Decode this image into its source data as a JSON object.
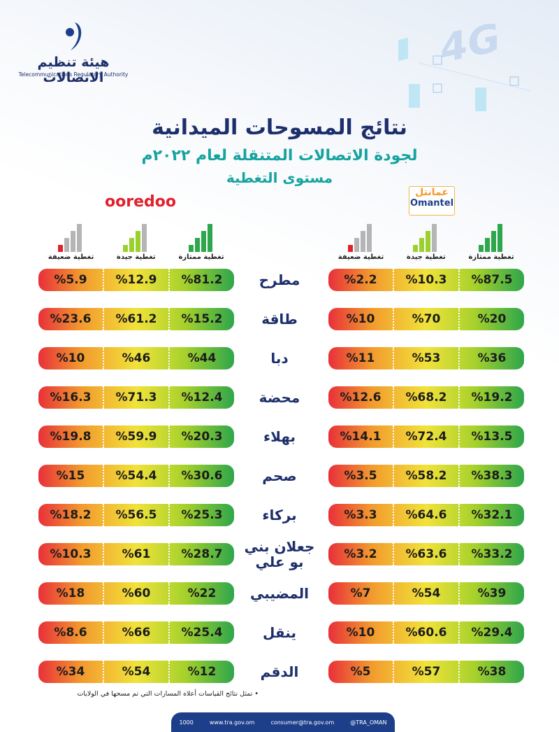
{
  "header": {
    "org_ar": "هيئة تنظيم الاتصالات",
    "org_en": "Telecommunications Regulatory Authority",
    "badge": "4G"
  },
  "title": {
    "line1": "نتائج المسوحات الميدانية",
    "line2": "لجودة الاتصالات المتنقلة لعام ٢٠٢٢م",
    "line3": "مستوى التغطية"
  },
  "ooredoo": {
    "logo": "ooredoo"
  },
  "omantel": {
    "logo_ar": "عمانتل",
    "logo_en": "Omantel"
  },
  "columns": [
    "تغطية ممتازة",
    "تغطية جيدة",
    "تغطية ضعيفة"
  ],
  "rows": [
    {
      "wilayat": "مطرح",
      "omantel": [
        "%87.5",
        "%10.3",
        "%2.2"
      ],
      "ooredoo": [
        "%81.2",
        "%12.9",
        "%5.9"
      ]
    },
    {
      "wilayat": "طاقة",
      "omantel": [
        "%20",
        "%70",
        "%10"
      ],
      "ooredoo": [
        "%15.2",
        "%61.2",
        "%23.6"
      ]
    },
    {
      "wilayat": "دبا",
      "omantel": [
        "%36",
        "%53",
        "%11"
      ],
      "ooredoo": [
        "%44",
        "%46",
        "%10"
      ]
    },
    {
      "wilayat": "محضة",
      "omantel": [
        "%19.2",
        "%68.2",
        "%12.6"
      ],
      "ooredoo": [
        "%12.4",
        "%71.3",
        "%16.3"
      ]
    },
    {
      "wilayat": "بهلاء",
      "omantel": [
        "%13.5",
        "%72.4",
        "%14.1"
      ],
      "ooredoo": [
        "%20.3",
        "%59.9",
        "%19.8"
      ]
    },
    {
      "wilayat": "صحم",
      "omantel": [
        "%38.3",
        "%58.2",
        "%3.5"
      ],
      "ooredoo": [
        "%30.6",
        "%54.4",
        "%15"
      ]
    },
    {
      "wilayat": "بركاء",
      "omantel": [
        "%32.1",
        "%64.6",
        "%3.3"
      ],
      "ooredoo": [
        "%25.3",
        "%56.5",
        "%18.2"
      ]
    },
    {
      "wilayat": "جعلان بني بو علي",
      "omantel": [
        "%33.2",
        "%63.6",
        "%3.2"
      ],
      "ooredoo": [
        "%28.7",
        "%61",
        "%10.3"
      ]
    },
    {
      "wilayat": "المضيبي",
      "omantel": [
        "%39",
        "%54",
        "%7"
      ],
      "ooredoo": [
        "%22",
        "%60",
        "%18"
      ]
    },
    {
      "wilayat": "ينقل",
      "omantel": [
        "%29.4",
        "%60.6",
        "%10"
      ],
      "ooredoo": [
        "%25.4",
        "%66",
        "%8.6"
      ]
    },
    {
      "wilayat": "الدقم",
      "omantel": [
        "%38",
        "%57",
        "%5"
      ],
      "ooredoo": [
        "%12",
        "%54",
        "%34"
      ]
    }
  ],
  "footnote": "• تمثل نتائج القياسات أعلاه المسارات التي تم مسحها في الولايات",
  "footer": {
    "phone": "1000",
    "web": "www.tra.gov.om",
    "email": "consumer@tra.gov.om",
    "social": "@TRA_OMAN"
  }
}
